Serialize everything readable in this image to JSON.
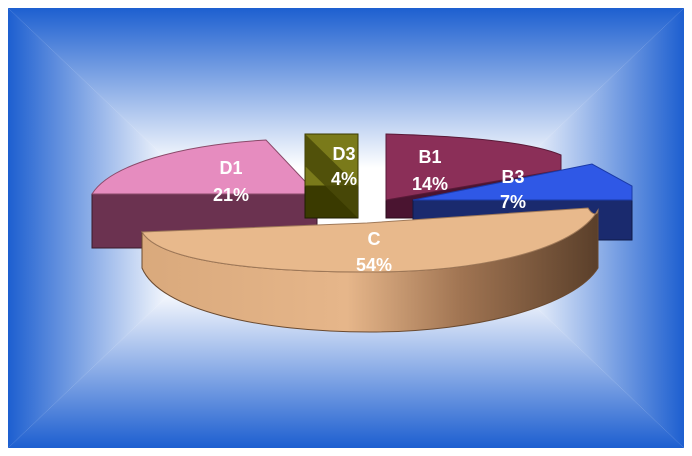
{
  "chart_data": {
    "type": "pie",
    "style": "3d-exploded",
    "slices": [
      {
        "name": "C",
        "percent": 54,
        "label": "C",
        "value_label": "54%",
        "color": "#e8b98c"
      },
      {
        "name": "D1",
        "percent": 21,
        "label": "D1",
        "value_label": "21%",
        "color": "#e68cbf"
      },
      {
        "name": "D3",
        "percent": 4,
        "label": "D3",
        "value_label": "4%",
        "color": "#7a7a1a"
      },
      {
        "name": "B1",
        "percent": 14,
        "label": "B1",
        "value_label": "14%",
        "color": "#8b2f58"
      },
      {
        "name": "B3",
        "percent": 7,
        "label": "B3",
        "value_label": "7%",
        "color": "#2f58e6"
      }
    ],
    "legend": "none",
    "background_colors": [
      "#1d5fd0",
      "#ffffff"
    ]
  }
}
